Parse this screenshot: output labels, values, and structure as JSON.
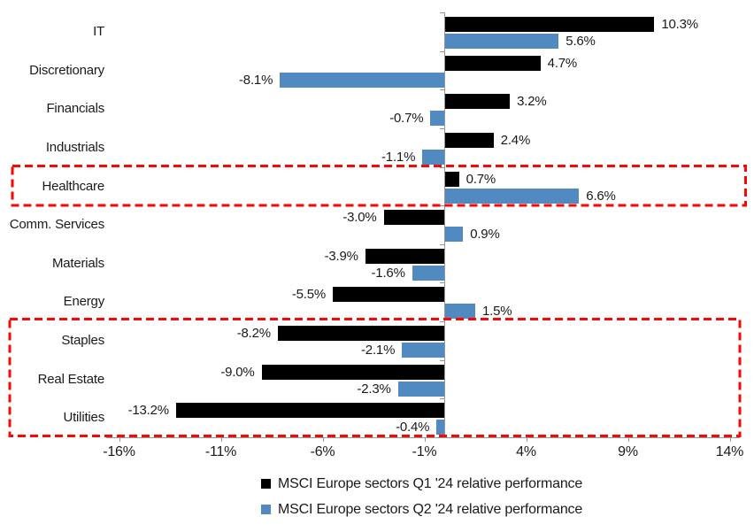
{
  "chart_data": {
    "type": "bar",
    "orientation": "horizontal",
    "title": "",
    "categories": [
      "IT",
      "Discretionary",
      "Financials",
      "Industrials",
      "Healthcare",
      "Comm. Services",
      "Materials",
      "Energy",
      "Staples",
      "Real Estate",
      "Utilities"
    ],
    "series": [
      {
        "name": "MSCI Europe sectors Q1 '24 relative performance",
        "color": "#000000",
        "values": [
          10.3,
          4.7,
          3.2,
          2.4,
          0.7,
          -3.0,
          -3.9,
          -5.5,
          -8.2,
          -9.0,
          -13.2
        ],
        "labels": [
          "10.3%",
          "4.7%",
          "3.2%",
          "2.4%",
          "0.7%",
          "-3.0%",
          "-3.9%",
          "-5.5%",
          "-8.2%",
          "-9.0%",
          "-13.2%"
        ]
      },
      {
        "name": "MSCI Europe sectors Q2 '24 relative performance",
        "color": "#5189C1",
        "values": [
          5.6,
          -8.1,
          -0.7,
          -1.1,
          6.6,
          0.9,
          -1.6,
          1.5,
          -2.1,
          -2.3,
          -0.4
        ],
        "labels": [
          "5.6%",
          "-8.1%",
          "-0.7%",
          "-1.1%",
          "6.6%",
          "0.9%",
          "-1.6%",
          "1.5%",
          "-2.1%",
          "-2.3%",
          "-0.4%"
        ]
      }
    ],
    "x_axis": {
      "tick_labels": [
        "-16%",
        "-11%",
        "-6%",
        "-1%",
        "4%",
        "9%",
        "14%"
      ],
      "tick_values": [
        -16,
        -11,
        -6,
        -1,
        4,
        9,
        14
      ],
      "min": -16.6,
      "max": 14.5,
      "unit": "%"
    },
    "y_axis": {
      "label_position": "far-left"
    },
    "grid": false,
    "legend": {
      "position": "bottom",
      "entries": [
        "MSCI Europe sectors Q1 '24 relative performance",
        "MSCI Europe sectors Q2 '24 relative performance"
      ]
    },
    "highlights": [
      {
        "name": "healthcare-highlight-box",
        "categories": [
          "Healthcare"
        ],
        "band_start": 4,
        "band_end": 4,
        "color": "#FB0505",
        "style": "dashed"
      },
      {
        "name": "staples-real-estate-utilities-highlight-box",
        "categories": [
          "Staples",
          "Real Estate",
          "Utilities"
        ],
        "band_start": 8,
        "band_end": 10,
        "color": "#FB0505",
        "style": "dashed"
      }
    ],
    "colors": {
      "q1_bar": "#000000",
      "q2_bar": "#5189C1",
      "axis": "#969696",
      "highlight": "#FB0505",
      "background": "#FFFFFF",
      "text": "#000000"
    }
  }
}
